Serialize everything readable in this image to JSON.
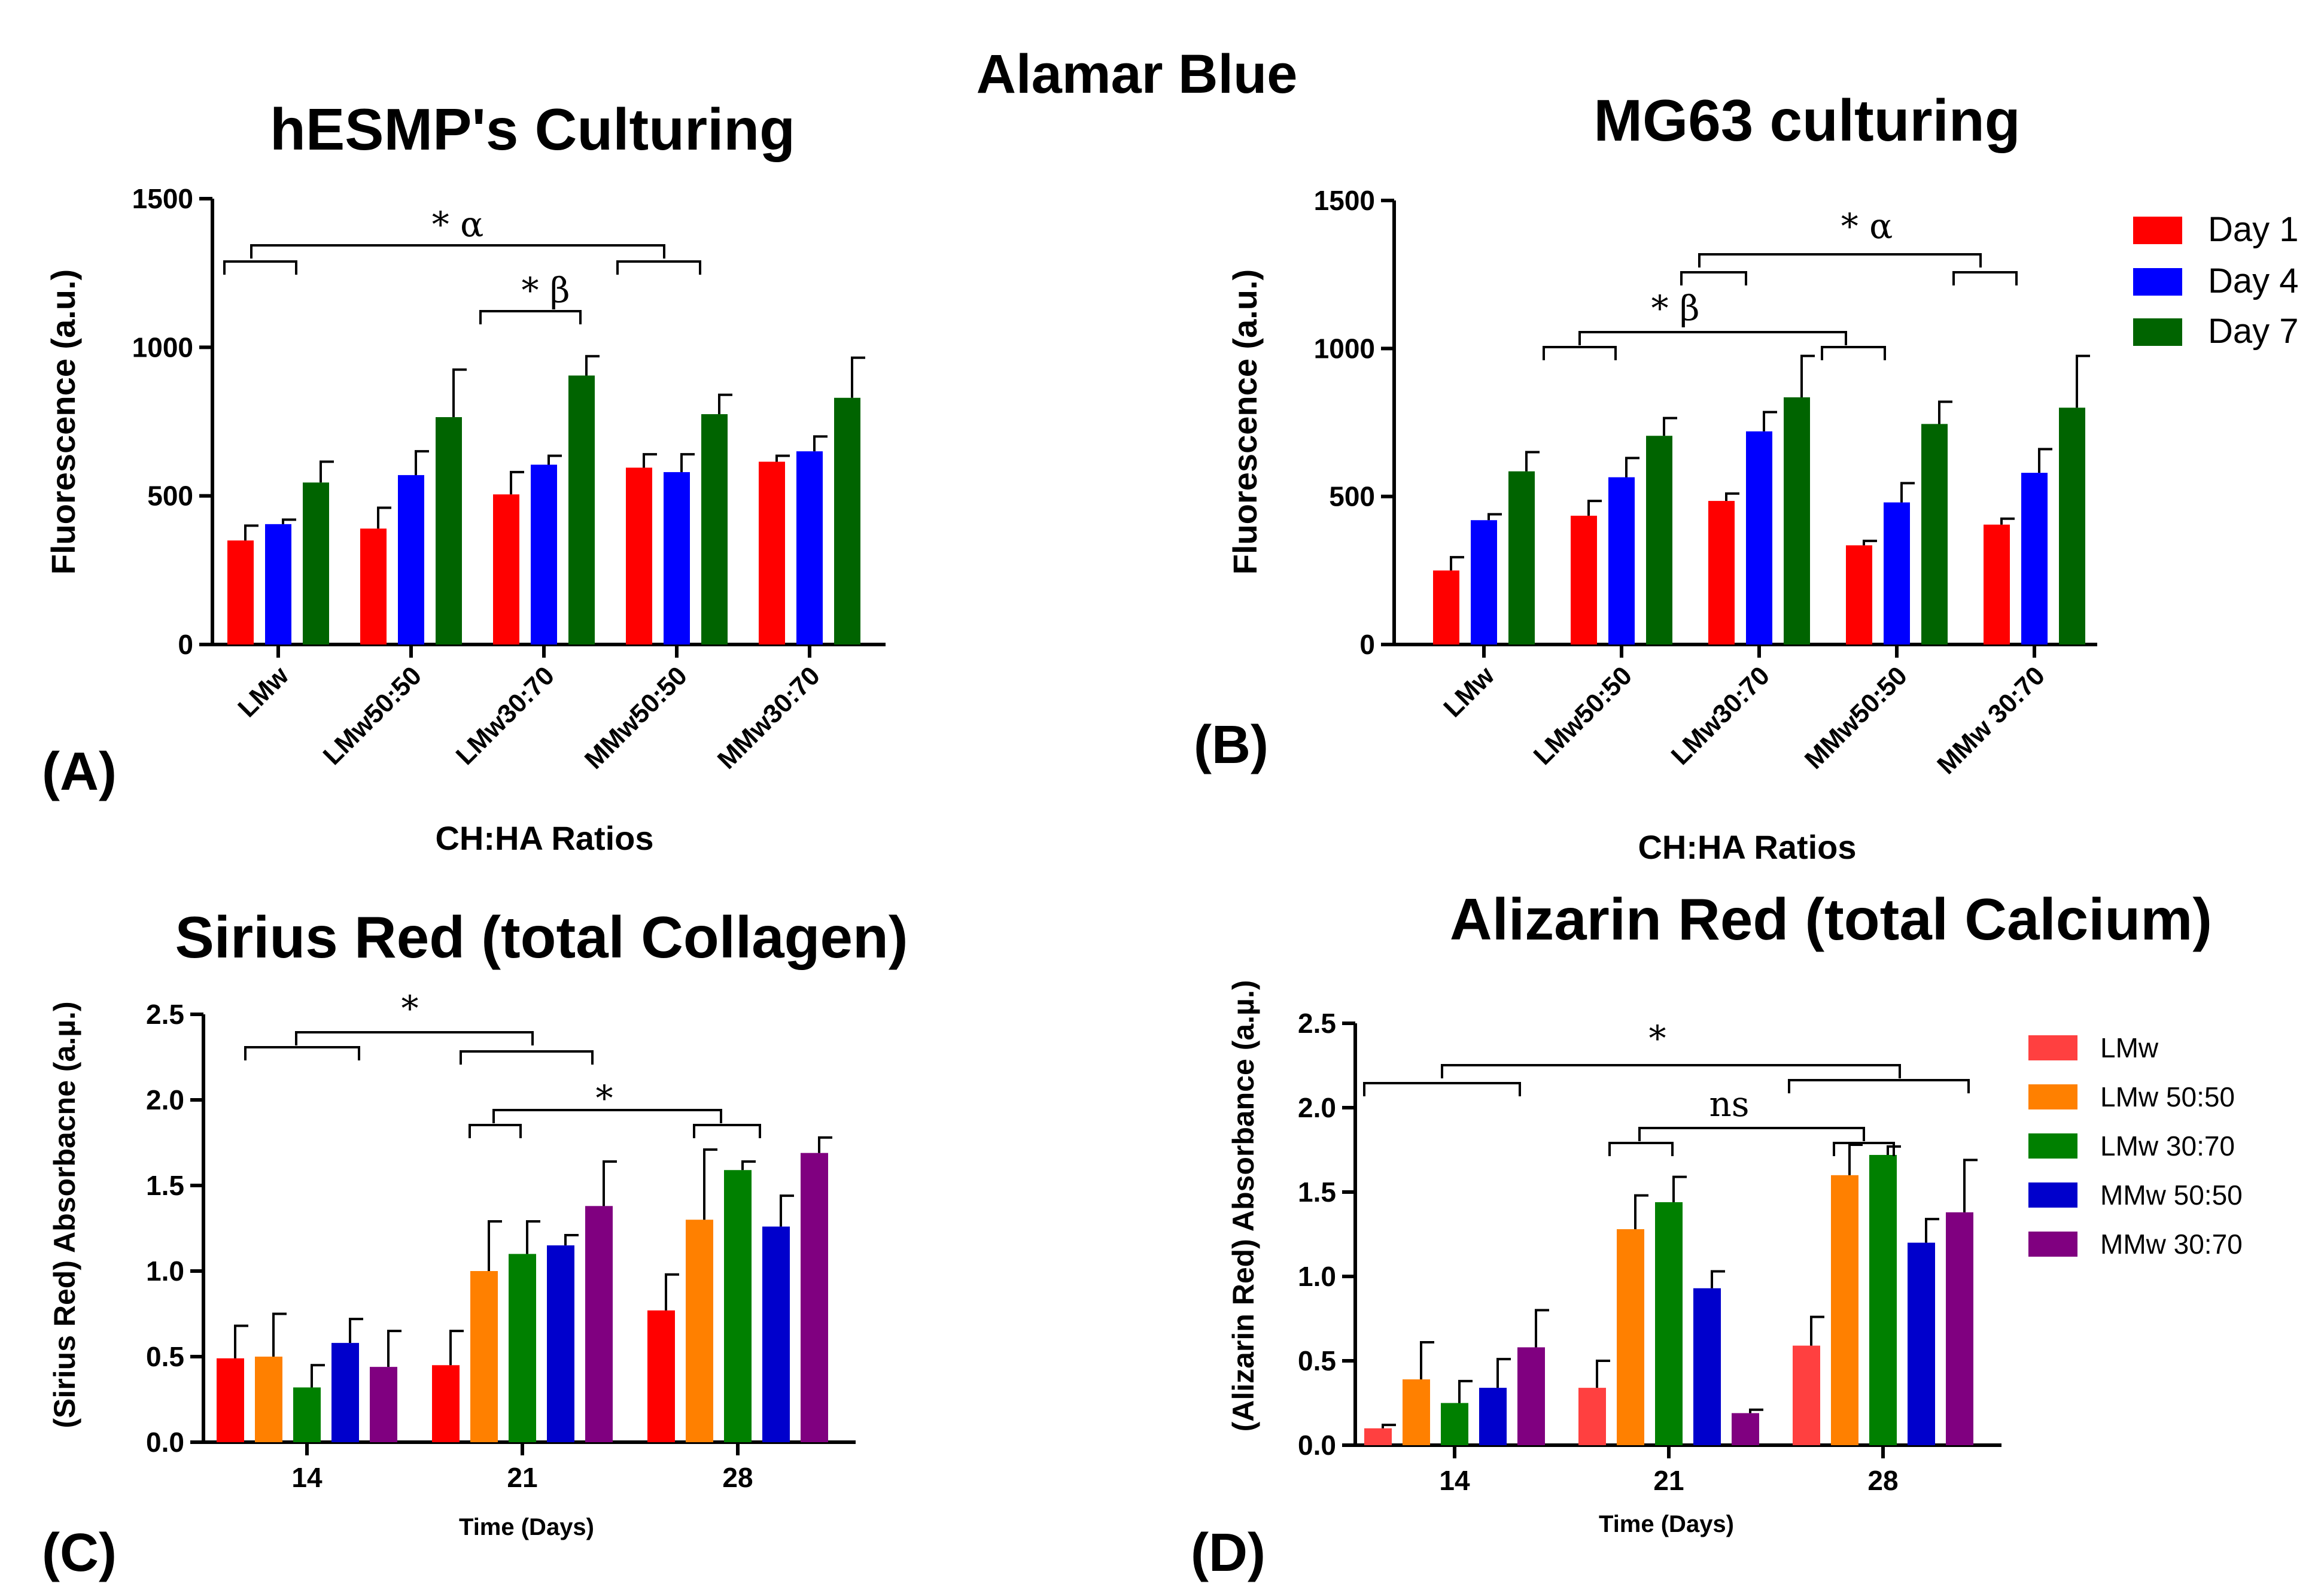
{
  "figure_title": "Alamar Blue",
  "legend_ab": [
    {
      "label": "Day 1",
      "color": "#ff0000"
    },
    {
      "label": "Day 4",
      "color": "#0000ff"
    },
    {
      "label": "Day 7",
      "color": "#006400"
    }
  ],
  "legend_d": [
    {
      "label": "LMw",
      "color": "#ff4040"
    },
    {
      "label": "LMw 50:50",
      "color": "#ff8000"
    },
    {
      "label": "LMw 30:70",
      "color": "#008000"
    },
    {
      "label": "MMw 50:50",
      "color": "#0000cc"
    },
    {
      "label": "MMw 30:70",
      "color": "#800080"
    }
  ],
  "chart_data": [
    {
      "panel": "(A)",
      "type": "bar",
      "title": "hESMP's  Culturing",
      "xlabel": "CH:HA  Ratios",
      "ylabel": "Fluorescence  (a.u.)",
      "ylim": [
        0,
        1500
      ],
      "yticks": [
        "0",
        "500",
        "1000",
        "1500"
      ],
      "categories": [
        "LMw",
        "LMw50:50",
        "LMw30:70",
        "MMw50:50",
        "MMw30:70"
      ],
      "series": [
        {
          "name": "Day 1",
          "color": "#ff0000",
          "values": [
            350,
            390,
            505,
            595,
            615
          ],
          "errors": [
            50,
            70,
            75,
            45,
            20
          ]
        },
        {
          "name": "Day 4",
          "color": "#0000ff",
          "values": [
            405,
            570,
            605,
            580,
            650
          ],
          "errors": [
            15,
            80,
            30,
            60,
            50
          ]
        },
        {
          "name": "Day 7",
          "color": "#006400",
          "values": [
            545,
            765,
            905,
            775,
            830
          ],
          "errors": [
            70,
            160,
            65,
            65,
            135
          ]
        }
      ],
      "annotations": [
        {
          "text": "* α",
          "level": 1350
        },
        {
          "text": "* β",
          "level": 1110
        }
      ]
    },
    {
      "panel": "(B)",
      "type": "bar",
      "title": "MG63 culturing",
      "xlabel": "CH:HA  Ratios",
      "ylabel": "Fluorescence  (a.u.)",
      "ylim": [
        0,
        1500
      ],
      "yticks": [
        "0",
        "500",
        "1000",
        "1500"
      ],
      "categories": [
        "LMw",
        "LMw50:50",
        "LMw30:70",
        "MMw50:50",
        "MMw 30:70"
      ],
      "series": [
        {
          "name": "Day 1",
          "color": "#ff0000",
          "values": [
            250,
            435,
            485,
            335,
            405
          ],
          "errors": [
            45,
            50,
            25,
            15,
            20
          ]
        },
        {
          "name": "Day 4",
          "color": "#0000ff",
          "values": [
            420,
            565,
            720,
            480,
            580
          ],
          "errors": [
            20,
            65,
            65,
            65,
            80
          ]
        },
        {
          "name": "Day 7",
          "color": "#006400",
          "values": [
            585,
            705,
            835,
            745,
            800
          ],
          "errors": [
            65,
            60,
            140,
            75,
            175
          ]
        }
      ],
      "annotations": [
        {
          "text": "* α",
          "level": 1345
        },
        {
          "text": "* β",
          "level": 1110
        }
      ]
    },
    {
      "panel": "(C)",
      "type": "bar",
      "title": "Sirius  Red (total  Collagen)",
      "xlabel": "Time (Days)",
      "ylabel": "(Sirius  Red)  Absorbacne (a.µ.)",
      "ylim": [
        0,
        2.5
      ],
      "yticks": [
        "0.0",
        "0.5",
        "1.0",
        "1.5",
        "2.0",
        "2.5"
      ],
      "categories": [
        "14",
        "21",
        "28"
      ],
      "series": [
        {
          "name": "LMw",
          "color": "#ff0000",
          "values": [
            0.49,
            0.45,
            0.77
          ],
          "errors": [
            0.19,
            0.2,
            0.21
          ]
        },
        {
          "name": "LMw 50:50",
          "color": "#ff8000",
          "values": [
            0.5,
            1.0,
            1.3
          ],
          "errors": [
            0.25,
            0.29,
            0.41
          ]
        },
        {
          "name": "LMw 30:70",
          "color": "#008000",
          "values": [
            0.32,
            1.1,
            1.59
          ],
          "errors": [
            0.13,
            0.19,
            0.05
          ]
        },
        {
          "name": "MMw 50:50",
          "color": "#0000cc",
          "values": [
            0.58,
            1.15,
            1.26
          ],
          "errors": [
            0.14,
            0.06,
            0.18
          ]
        },
        {
          "name": "MMw 30:70",
          "color": "#800080",
          "values": [
            0.44,
            1.38,
            1.69
          ],
          "errors": [
            0.21,
            0.26,
            0.09
          ]
        }
      ],
      "annotations": [
        {
          "text": "*",
          "level": 2.4
        },
        {
          "text": "*",
          "level": 1.94
        }
      ]
    },
    {
      "panel": "(D)",
      "type": "bar",
      "title": "Alizarin  Red (total Calcium)",
      "xlabel": "Time (Days)",
      "ylabel": "(Alizarin  Red)  Absorbance  (a.µ.)",
      "ylim": [
        0,
        2.5
      ],
      "yticks": [
        "0.0",
        "0.5",
        "1.0",
        "1.5",
        "2.0",
        "2.5"
      ],
      "categories": [
        "14",
        "21",
        "28"
      ],
      "series": [
        {
          "name": "LMw",
          "color": "#ff4040",
          "values": [
            0.1,
            0.34,
            0.59
          ],
          "errors": [
            0.02,
            0.16,
            0.17
          ]
        },
        {
          "name": "LMw 50:50",
          "color": "#ff8000",
          "values": [
            0.39,
            1.28,
            1.6
          ],
          "errors": [
            0.22,
            0.2,
            0.18
          ]
        },
        {
          "name": "LMw 30:70",
          "color": "#008000",
          "values": [
            0.25,
            1.44,
            1.72
          ],
          "errors": [
            0.13,
            0.15,
            0.05
          ]
        },
        {
          "name": "MMw 50:50",
          "color": "#0000cc",
          "values": [
            0.34,
            0.93,
            1.2
          ],
          "errors": [
            0.17,
            0.1,
            0.14
          ]
        },
        {
          "name": "MMw 30:70",
          "color": "#800080",
          "values": [
            0.58,
            0.19,
            1.38
          ],
          "errors": [
            0.22,
            0.02,
            0.31
          ]
        }
      ],
      "annotations": [
        {
          "text": "*",
          "level": 2.24
        },
        {
          "text": "ns",
          "level": 1.92
        }
      ]
    }
  ]
}
